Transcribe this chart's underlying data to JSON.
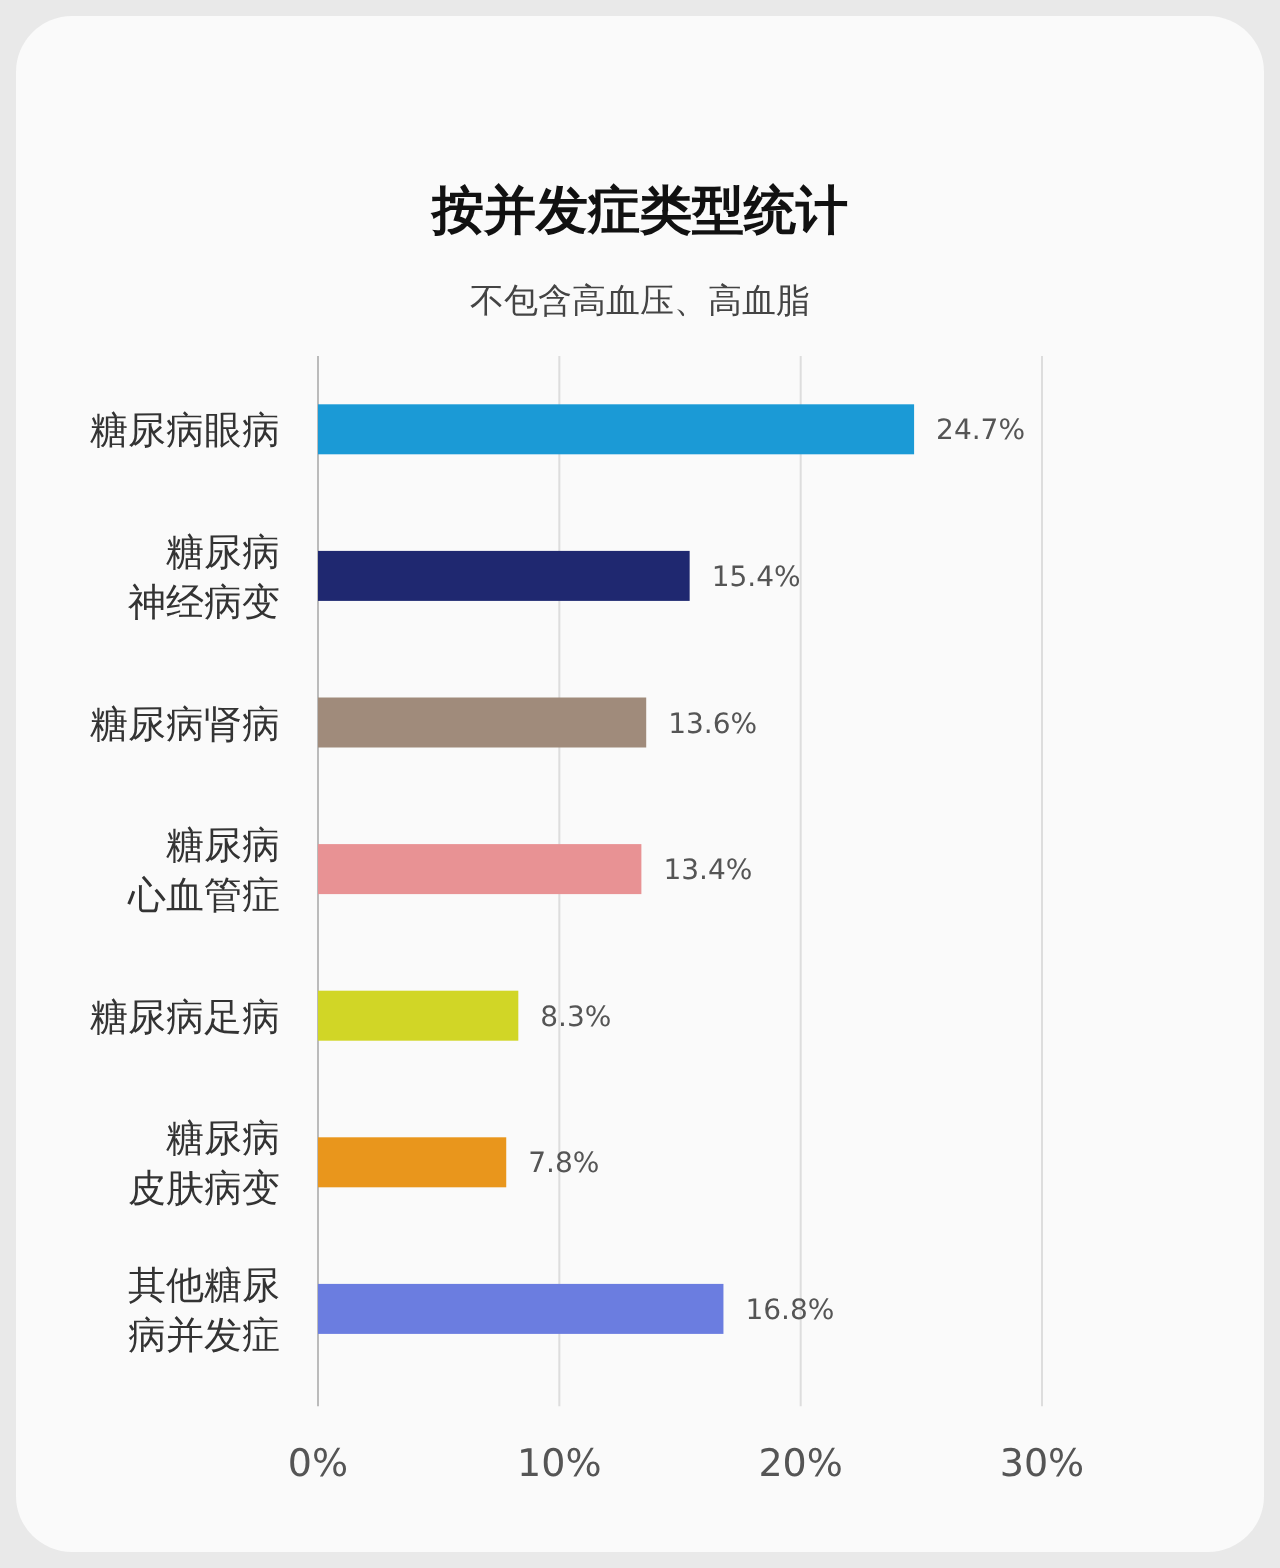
{
  "chart_data": {
    "type": "bar",
    "orientation": "horizontal",
    "title": "按并发症类型统计",
    "subtitle": "不包含高血压、高血脂",
    "categories": [
      "糖尿病眼病",
      "糖尿病神经病变",
      "糖尿病肾病",
      "糖尿病心血管症",
      "糖尿病足病",
      "糖尿病皮肤病变",
      "其他糖尿病并发症"
    ],
    "values": [
      24.7,
      15.4,
      13.6,
      13.4,
      8.3,
      7.8,
      16.8
    ],
    "colors": [
      "#1b9ad6",
      "#1f2870",
      "#a08b7b",
      "#e89294",
      "#d1d626",
      "#e9961c",
      "#6b7de0"
    ],
    "value_labels": [
      "24.7%",
      "15.4%",
      "13.6%",
      "13.4%",
      "8.3%",
      "7.8%",
      "16.8%"
    ],
    "xlim": [
      0,
      30
    ],
    "xticks": [
      {
        "value": 0,
        "label": "0%"
      },
      {
        "value": 10,
        "label": "10%"
      },
      {
        "value": 20,
        "label": "20%"
      },
      {
        "value": 30,
        "label": "30%"
      }
    ],
    "grid": "x"
  }
}
